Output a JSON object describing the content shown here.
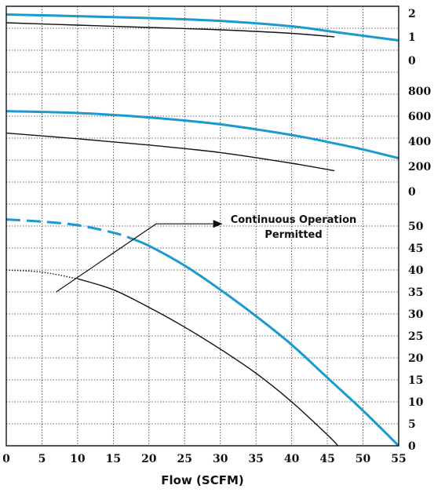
{
  "chart_data": {
    "type": "line",
    "xlabel": "Flow (SCFM)",
    "xlim": [
      0,
      55
    ],
    "x_ticks": [
      "0",
      "5",
      "10",
      "15",
      "20",
      "25",
      "30",
      "35",
      "40",
      "45",
      "50",
      "55"
    ],
    "grid": true,
    "colors": {
      "blue": "#1a9ad0",
      "black": "#111111"
    },
    "panels": [
      {
        "name": "top",
        "ylim": [
          -0.5,
          2.3
        ],
        "y_ticks": [
          "2",
          "1",
          "0"
        ],
        "series": [
          {
            "color": "blue",
            "style": "solid",
            "x": [
              0,
              10,
              20,
              30,
              40,
              45,
              50,
              55
            ],
            "y": [
              1.95,
              1.88,
              1.8,
              1.68,
              1.45,
              1.25,
              1.05,
              0.85
            ]
          },
          {
            "color": "black",
            "style": "solid",
            "x": [
              0,
              10,
              20,
              30,
              40,
              46
            ],
            "y": [
              1.6,
              1.5,
              1.4,
              1.3,
              1.15,
              1.0
            ]
          }
        ]
      },
      {
        "name": "middle",
        "ylim": [
          -100,
          950
        ],
        "y_ticks": [
          "800",
          "600",
          "400",
          "200",
          "0"
        ],
        "series": [
          {
            "color": "blue",
            "style": "solid",
            "x": [
              0,
              10,
              20,
              30,
              40,
              45,
              50,
              55
            ],
            "y": [
              640,
              625,
              590,
              535,
              450,
              395,
              335,
              265
            ]
          },
          {
            "color": "black",
            "style": "solid",
            "x": [
              0,
              10,
              20,
              30,
              40,
              46
            ],
            "y": [
              465,
              420,
              370,
              310,
              225,
              165
            ]
          }
        ]
      },
      {
        "name": "bottom",
        "ylim": [
          0,
          55
        ],
        "y_ticks": [
          "50",
          "45",
          "40",
          "35",
          "30",
          "25",
          "20",
          "15",
          "10",
          "5",
          "0"
        ],
        "series": [
          {
            "color": "blue",
            "style": "dashed",
            "x": [
              0,
              5,
              10,
              15,
              17
            ],
            "y": [
              51.5,
              51,
              50.2,
              48.5,
              47.5
            ]
          },
          {
            "color": "blue",
            "style": "solid",
            "x": [
              17,
              20,
              25,
              30,
              35,
              40,
              45,
              50,
              55
            ],
            "y": [
              47.5,
              45.5,
              41,
              35.5,
              29.5,
              23,
              15.5,
              8,
              0
            ]
          },
          {
            "color": "black",
            "style": "dotted",
            "x": [
              0,
              5,
              10
            ],
            "y": [
              40,
              39.5,
              38
            ]
          },
          {
            "color": "black",
            "style": "solid",
            "x": [
              10,
              15,
              20,
              25,
              30,
              35,
              40,
              45,
              46.5
            ],
            "y": [
              38,
              35.5,
              31.5,
              27,
              22,
              16.5,
              10,
              2.5,
              0
            ]
          }
        ]
      }
    ],
    "annotation": {
      "lines": [
        "Continuous Operation",
        "Permitted"
      ],
      "arrow": {
        "tail": [
          7,
          35
        ],
        "bend": [
          21,
          50.5
        ],
        "head": [
          29,
          50.5
        ]
      }
    }
  }
}
